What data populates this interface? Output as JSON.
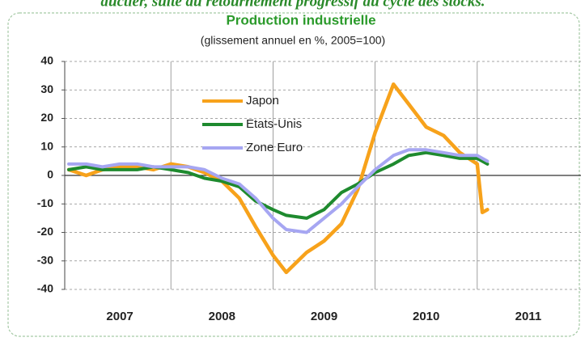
{
  "chart_data": {
    "type": "line",
    "caption": "ductier, suite au retournement progressif du cycle des stocks.",
    "title": "Production industrielle",
    "subtitle": "(glissement annuel en %, 2005=100)",
    "categories": [
      "2007",
      "2008",
      "2009",
      "2010",
      "2011"
    ],
    "xlim": [
      2007,
      2012
    ],
    "x": [
      2007.0,
      2007.17,
      2007.33,
      2007.5,
      2007.67,
      2007.83,
      2008.0,
      2008.17,
      2008.33,
      2008.5,
      2008.67,
      2008.83,
      2009.0,
      2009.13,
      2009.33,
      2009.5,
      2009.67,
      2009.83,
      2010.0,
      2010.18,
      2010.33,
      2010.5,
      2010.67,
      2010.83,
      2011.0,
      2011.05,
      2011.1
    ],
    "series": [
      {
        "name": "Japon",
        "color": "#f7a21b",
        "values": [
          2,
          0,
          2,
          3,
          3,
          2,
          4,
          3,
          1,
          -2,
          -8,
          -18,
          -28,
          -34,
          -27,
          -23,
          -17,
          -5,
          15,
          32,
          25,
          17,
          14,
          8,
          4,
          -13,
          -12
        ]
      },
      {
        "name": "Etats-Unis",
        "color": "#1e8a2e",
        "values": [
          2,
          3,
          2,
          2,
          2,
          3,
          2,
          1,
          -1,
          -2,
          -4,
          -9,
          -12,
          -14,
          -15,
          -12,
          -6,
          -3,
          1,
          4,
          7,
          8,
          7,
          6,
          6,
          5,
          4
        ]
      },
      {
        "name": "Zone Euro",
        "color": "#a6a6f2",
        "values": [
          4,
          4,
          3,
          4,
          4,
          3,
          3,
          3,
          2,
          -1,
          -3,
          -8,
          -15,
          -19,
          -20,
          -15,
          -10,
          -4,
          2,
          7,
          9,
          9,
          8,
          7,
          7,
          6,
          5
        ]
      }
    ],
    "ylim": [
      -40,
      40
    ],
    "yticks": [
      -40,
      -30,
      -20,
      -10,
      0,
      10,
      20,
      30,
      40
    ],
    "grid": true
  }
}
